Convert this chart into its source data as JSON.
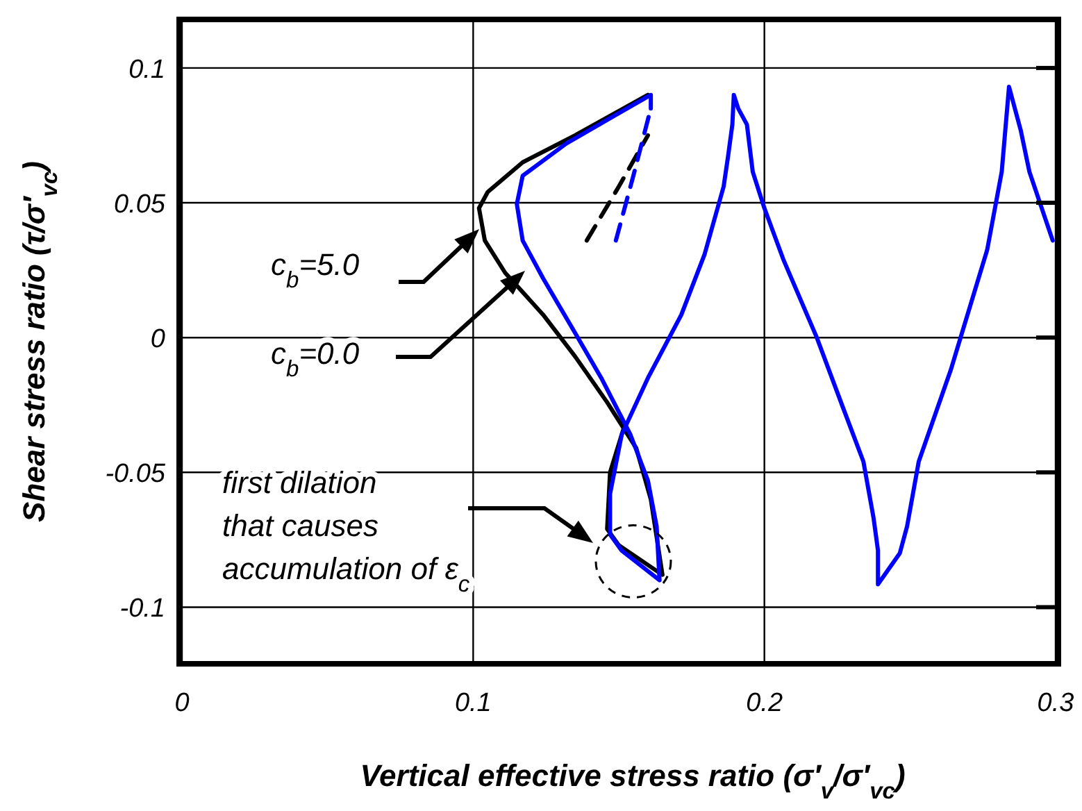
{
  "chart_data": {
    "type": "line",
    "xlabel": "Vertical effective stress ratio (σ′$_{v}$/σ′$_{vc}$)",
    "ylabel": "Shear stress ratio (τ/σ′$_{vc}$)",
    "xlim": [
      0,
      0.3
    ],
    "ylim": [
      -0.121,
      0.118
    ],
    "xticks": [
      0,
      0.1,
      0.2,
      0.3
    ],
    "yticks": [
      -0.1,
      -0.05,
      0,
      0.05,
      0.1
    ],
    "grid": true,
    "marker": "none",
    "series": [
      {
        "color": "#000000",
        "line_style": "dashed",
        "x": [
          0.139,
          0.15,
          0.16
        ],
        "values": [
          0.036,
          0.056,
          0.075
        ]
      },
      {
        "color": "#0000ff",
        "line_style": "dashed",
        "x": [
          0.149,
          0.155,
          0.161
        ],
        "values": [
          0.036,
          0.06,
          0.085
        ]
      },
      {
        "color": "#000000",
        "line_style": "solid",
        "x": [
          0.16,
          0.135,
          0.117,
          0.105,
          0.102,
          0.104,
          0.111,
          0.124,
          0.135,
          0.146,
          0.156,
          0.161,
          0.163,
          0.165,
          0.15,
          0.146,
          0.147,
          0.152
        ],
        "values": [
          0.09,
          0.075,
          0.065,
          0.054,
          0.048,
          0.036,
          0.024,
          0.0085,
          -0.007,
          -0.024,
          -0.041,
          -0.06,
          -0.074,
          -0.088,
          -0.077,
          -0.071,
          -0.05,
          -0.0325
        ]
      },
      {
        "color": "#0000ff",
        "line_style": "solid",
        "x": [
          0.161,
          0.161,
          0.148,
          0.132,
          0.117,
          0.115,
          0.117,
          0.124,
          0.135,
          0.144,
          0.154,
          0.16,
          0.163,
          0.164,
          0.151,
          0.147,
          0.147,
          0.151,
          0.16,
          0.1715,
          0.1795,
          0.186,
          0.1875,
          0.189,
          0.1895,
          0.191,
          0.194,
          0.196,
          0.2,
          0.2065,
          0.218,
          0.227,
          0.234,
          0.2375,
          0.239,
          0.239,
          0.2465,
          0.249,
          0.253,
          0.264,
          0.2765,
          0.2815,
          0.284,
          0.288,
          0.291,
          0.299
        ],
        "values": [
          0.085,
          0.09,
          0.082,
          0.072,
          0.06,
          0.0495,
          0.036,
          0.022,
          0.0017,
          -0.015,
          -0.036,
          -0.053,
          -0.07,
          -0.09,
          -0.079,
          -0.073,
          -0.058,
          -0.036,
          -0.015,
          0.0085,
          0.031,
          0.056,
          0.067,
          0.079,
          0.09,
          0.085,
          0.079,
          0.0615,
          0.048,
          0.029,
          0.0,
          -0.026,
          -0.046,
          -0.067,
          -0.079,
          -0.0915,
          -0.08,
          -0.07,
          -0.046,
          -0.012,
          0.0325,
          0.0615,
          0.093,
          0.077,
          0.0615,
          0.036
        ]
      }
    ],
    "annotations": [
      "c$_{b}$=5.0",
      "c$_{b}$=0.0",
      "first dilation\nthat causes\naccumulation of ε$_{c}$"
    ]
  }
}
